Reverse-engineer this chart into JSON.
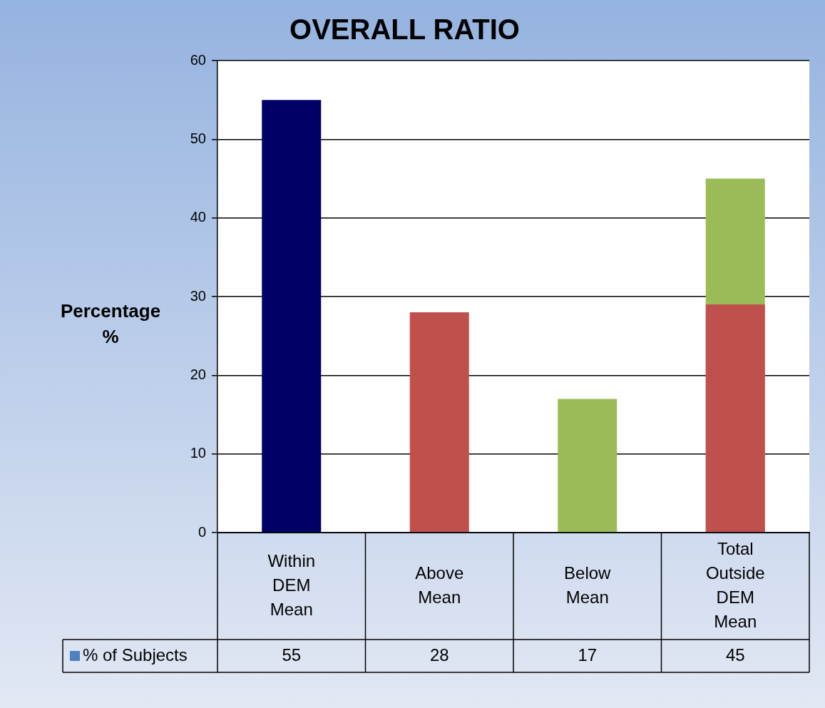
{
  "chart_data": {
    "type": "bar",
    "title": "OVERALL RATIO",
    "ylabel": "Percentage %",
    "categories": [
      "Within DEM Mean",
      "Above Mean",
      "Below Mean",
      "Total Outside DEM Mean"
    ],
    "series": [
      {
        "name": "% of Subjects",
        "color": "#4f81bd",
        "colors": [
          "#000066",
          "#c0504d",
          "#9bbb59",
          "#9bbb59"
        ],
        "values": [
          55,
          28,
          17,
          45
        ],
        "value_labels": [
          "55",
          "28",
          "17",
          "45"
        ]
      },
      {
        "color": "#c0504d",
        "values": [
          null,
          null,
          null,
          29
        ]
      }
    ],
    "ylim": [
      0,
      60
    ],
    "yticks": [
      0,
      10,
      20,
      30,
      40,
      50,
      60
    ],
    "grid": "y",
    "legend": "bottom"
  }
}
